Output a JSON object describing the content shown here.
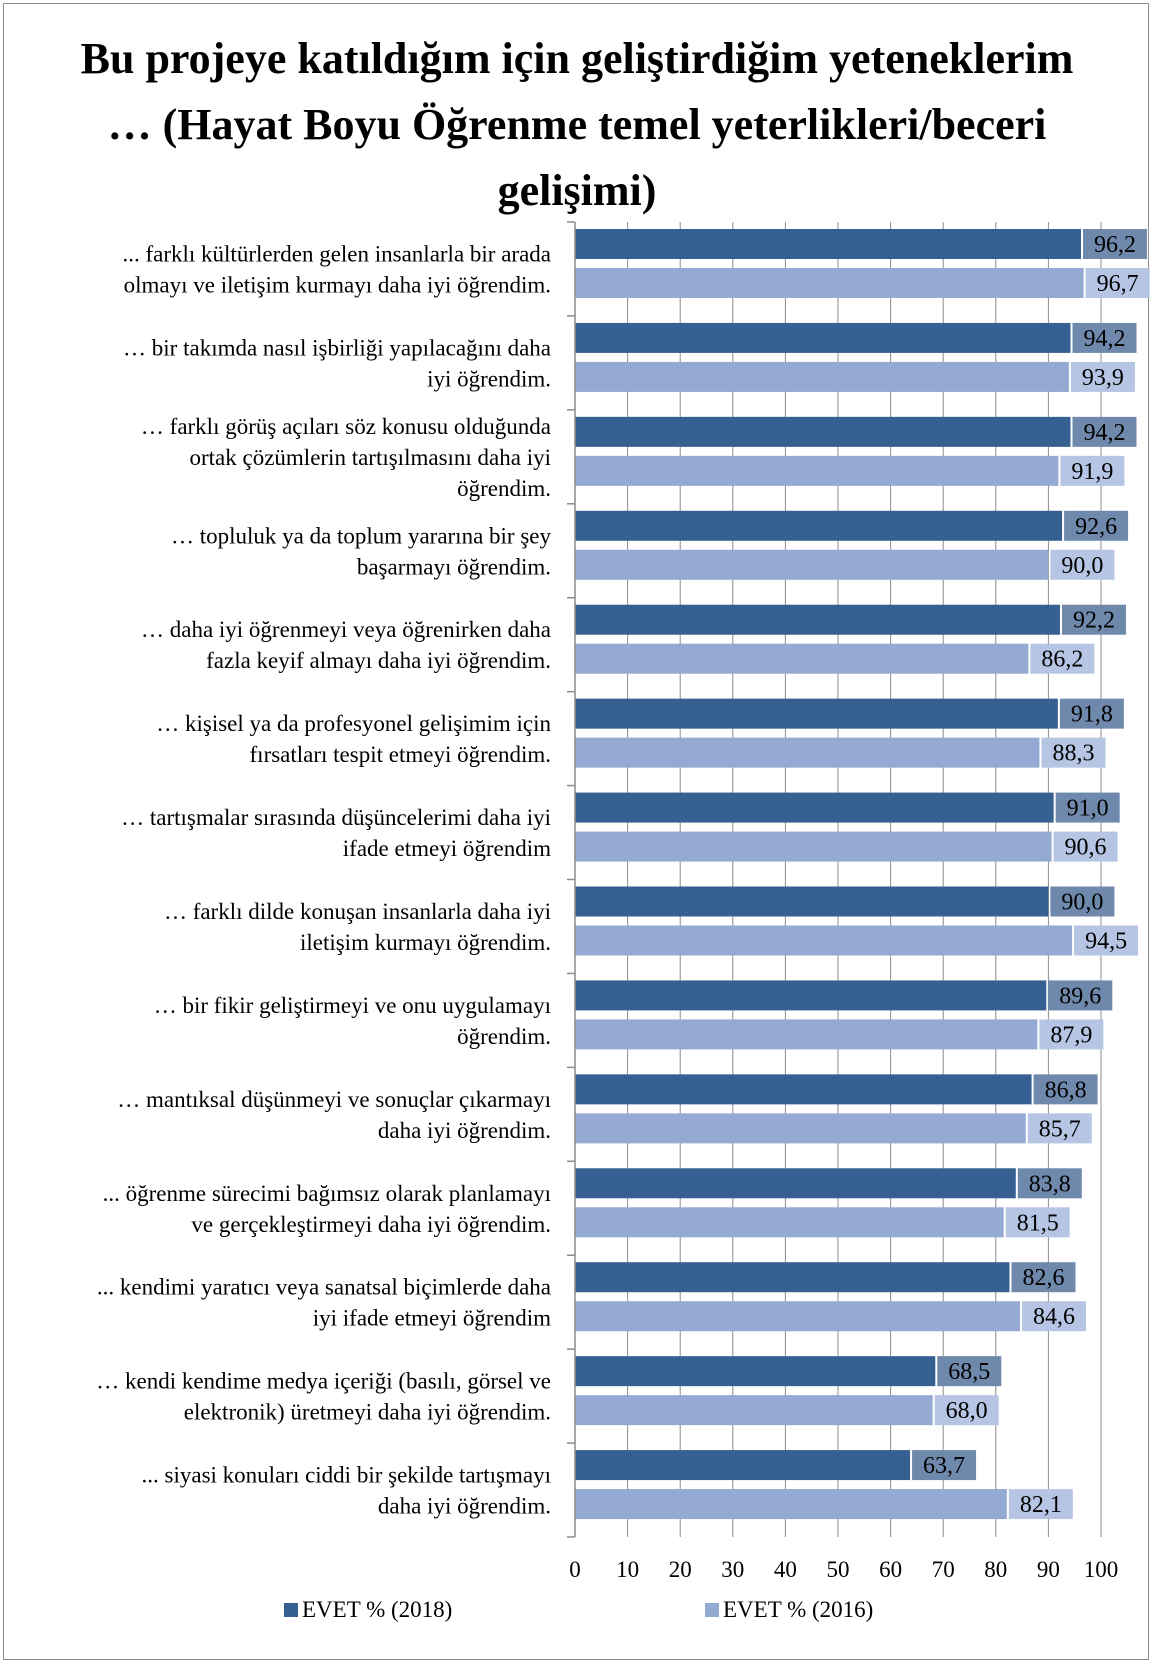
{
  "chart_data": {
    "type": "bar",
    "orientation": "horizontal",
    "title": "Bu projeye katıldığım için geliştirdiğim yeteneklerim … (Hayat Boyu Öğrenme temel yeterlikleri/beceri gelişimi)",
    "categories": [
      [
        "... farklı kültürlerden gelen insanlarla bir arada",
        "olmayı ve iletişim kurmayı daha iyi öğrendim."
      ],
      [
        "… bir takımda nasıl işbirliği yapılacağını daha",
        "iyi öğrendim."
      ],
      [
        "… farklı görüş açıları söz konusu olduğunda",
        "ortak çözümlerin tartışılmasını daha iyi",
        "öğrendim."
      ],
      [
        "… topluluk ya da toplum yararına bir şey",
        "başarmayı öğrendim."
      ],
      [
        "… daha iyi öğrenmeyi veya öğrenirken daha",
        "fazla keyif almayı daha iyi öğrendim."
      ],
      [
        "… kişisel ya da profesyonel gelişimim için",
        "fırsatları tespit etmeyi öğrendim."
      ],
      [
        "… tartışmalar sırasında düşüncelerimi daha iyi",
        "ifade etmeyi öğrendim"
      ],
      [
        "… farklı dilde konuşan insanlarla daha iyi",
        "iletişim kurmayı öğrendim."
      ],
      [
        "… bir fikir geliştirmeyi ve onu uygulamayı",
        "öğrendim."
      ],
      [
        "… mantıksal düşünmeyi ve sonuçlar çıkarmayı",
        "daha iyi öğrendim."
      ],
      [
        "... öğrenme sürecimi bağımsız olarak planlamayı",
        "ve gerçekleştirmeyi daha iyi öğrendim."
      ],
      [
        "... kendimi yaratıcı veya sanatsal biçimlerde daha",
        "iyi ifade etmeyi öğrendim"
      ],
      [
        "… kendi kendime medya içeriği (basılı, görsel ve",
        "elektronik) üretmeyi daha iyi öğrendim."
      ],
      [
        "... siyasi konuları ciddi bir şekilde tartışmayı",
        "daha iyi öğrendim."
      ]
    ],
    "series": [
      {
        "name": "EVET % (2018)",
        "color": "#376092",
        "label_bg": "#6f89ad",
        "values": [
          96.2,
          94.2,
          94.2,
          92.6,
          92.2,
          91.8,
          91.0,
          90.0,
          89.6,
          86.8,
          83.8,
          82.6,
          68.5,
          63.7
        ],
        "labels": [
          "96,2",
          "94,2",
          "94,2",
          "92,6",
          "92,2",
          "91,8",
          "91,0",
          "90,0",
          "89,6",
          "86,8",
          "83,8",
          "82,6",
          "68,5",
          "63,7"
        ]
      },
      {
        "name": "EVET % (2016)",
        "color": "#95aad2",
        "label_bg": "#b5c5e3",
        "values": [
          96.7,
          93.9,
          91.9,
          90.0,
          86.2,
          88.3,
          90.6,
          94.5,
          87.9,
          85.7,
          81.5,
          84.6,
          68.0,
          82.1
        ],
        "labels": [
          "96,7",
          "93,9",
          "91,9",
          "90,0",
          "86,2",
          "88,3",
          "90,6",
          "94,5",
          "87,9",
          "85,7",
          "81,5",
          "84,6",
          "68,0",
          "82,1"
        ]
      }
    ],
    "xlim": [
      0,
      100
    ],
    "xticks": [
      "0",
      "10",
      "20",
      "30",
      "40",
      "50",
      "60",
      "70",
      "80",
      "90",
      "100"
    ],
    "grid": true,
    "legend_position": "bottom"
  }
}
